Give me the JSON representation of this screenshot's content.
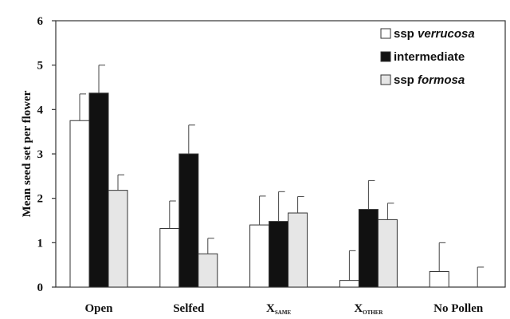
{
  "chart_data": {
    "type": "bar",
    "categories": [
      {
        "main": "Open",
        "sub": ""
      },
      {
        "main": "Selfed",
        "sub": ""
      },
      {
        "main": "X",
        "sub": "SAME"
      },
      {
        "main": "X",
        "sub": "OTHER"
      },
      {
        "main": "No Pollen",
        "sub": ""
      }
    ],
    "series": [
      {
        "name_prefix": "ssp ",
        "name_italic": "verrucosa",
        "color": "#ffffff",
        "values": [
          3.75,
          1.32,
          1.4,
          0.15,
          0.35
        ],
        "errors": [
          0.6,
          0.62,
          0.65,
          0.67,
          0.65
        ]
      },
      {
        "name_prefix": "intermediate",
        "name_italic": "",
        "color": "#111111",
        "values": [
          4.37,
          3.0,
          1.48,
          1.75,
          null
        ],
        "errors": [
          0.63,
          0.65,
          0.67,
          0.65,
          null
        ]
      },
      {
        "name_prefix": "ssp ",
        "name_italic": "formosa",
        "color": "#e6e6e6",
        "values": [
          2.18,
          0.75,
          1.67,
          1.52,
          0.0
        ],
        "errors": [
          0.35,
          0.35,
          0.37,
          0.37,
          0.45
        ]
      }
    ],
    "y_ticks": [
      "0",
      "1",
      "2",
      "3",
      "4",
      "5",
      "6"
    ],
    "ylim": [
      0,
      6
    ],
    "xlabel": "",
    "ylabel": "Mean seed set per flower",
    "title": "",
    "legend_position": "top-right",
    "grid": false
  }
}
